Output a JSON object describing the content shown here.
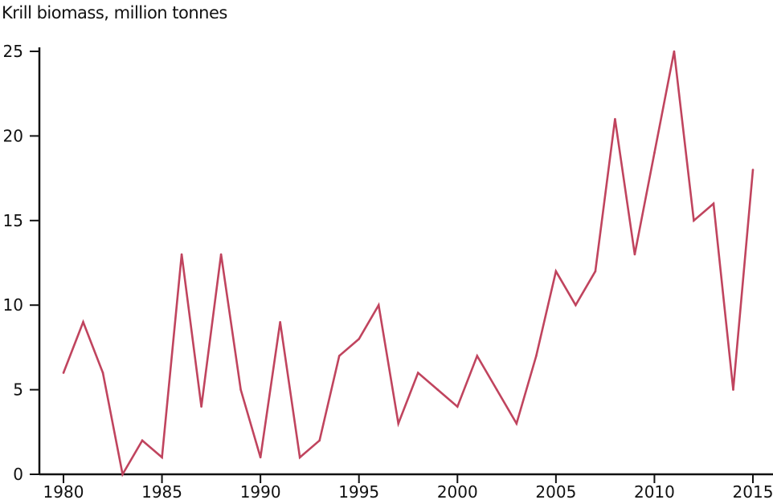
{
  "chart_data": {
    "type": "line",
    "title": "Krill biomass, million tonnes",
    "xlabel": "",
    "ylabel": "",
    "xlim": [
      1980,
      2015
    ],
    "ylim": [
      0,
      25
    ],
    "grid": false,
    "x_ticks": [
      "1980",
      "1985",
      "1990",
      "1995",
      "2000",
      "2005",
      "2010",
      "2015"
    ],
    "y_ticks": [
      "0",
      "5",
      "10",
      "15",
      "20",
      "25"
    ],
    "series": [
      {
        "name": "Krill biomass",
        "color": "#c0445e",
        "x": [
          1980,
          1981,
          1982,
          1983,
          1984,
          1985,
          1986,
          1987,
          1988,
          1989,
          1990,
          1991,
          1992,
          1993,
          1994,
          1995,
          1996,
          1997,
          1998,
          1999,
          2000,
          2001,
          2002,
          2003,
          2004,
          2005,
          2006,
          2007,
          2008,
          2009,
          2010,
          2011,
          2012,
          2013,
          2014,
          2015
        ],
        "values": [
          6,
          9,
          6,
          0,
          2,
          1,
          13,
          4,
          13,
          5,
          1,
          9,
          1,
          2,
          7,
          8,
          10,
          3,
          6,
          5,
          4,
          7,
          5,
          3,
          7,
          12,
          10,
          12,
          21,
          13,
          19,
          25,
          15,
          16,
          5,
          18
        ]
      }
    ]
  }
}
